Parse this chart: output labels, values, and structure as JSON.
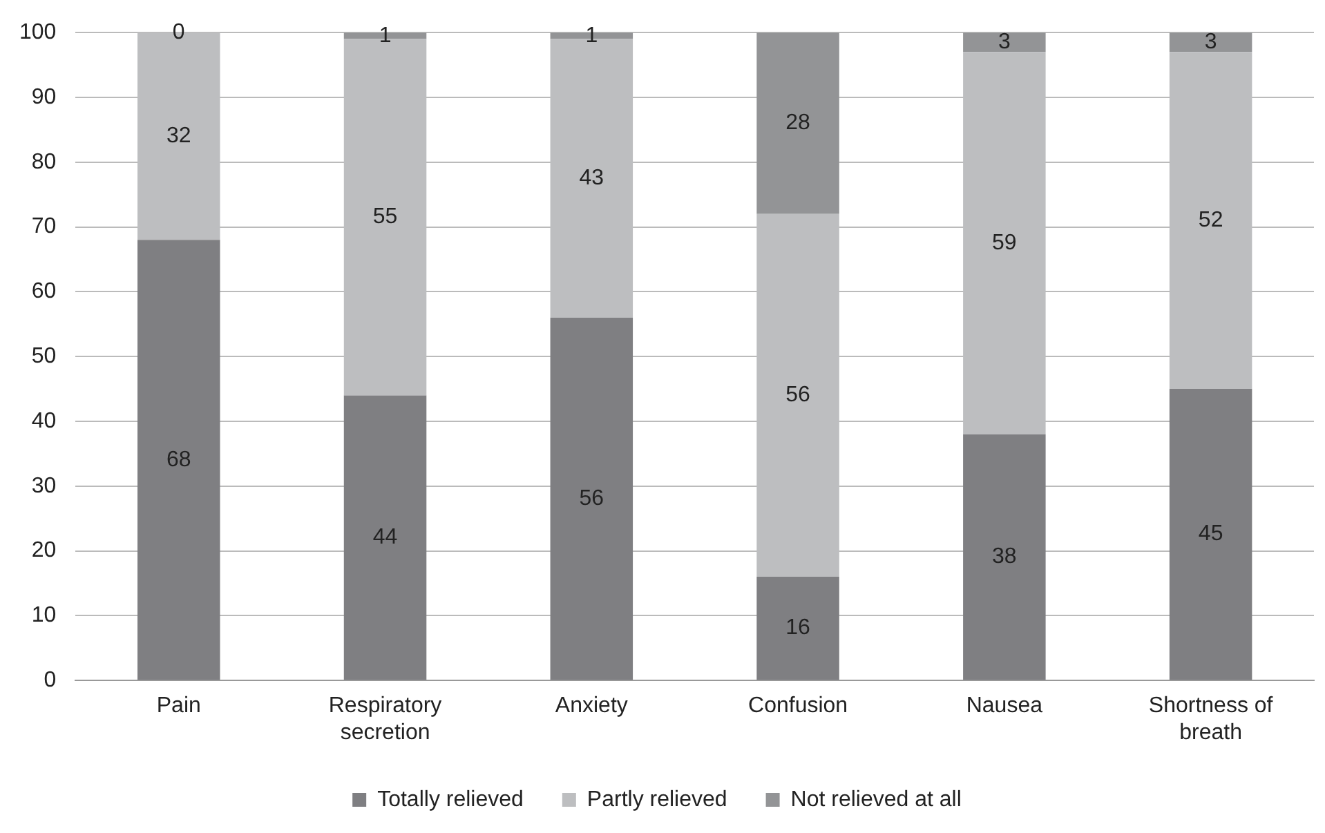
{
  "chart_data": {
    "type": "bar",
    "stacked": true,
    "categories": [
      "Pain",
      "Respiratory secretion",
      "Anxiety",
      "Confusion",
      "Nausea",
      "Shortness of breath"
    ],
    "series": [
      {
        "name": "Totally relieved",
        "color": "#7f7f82",
        "values": [
          68,
          44,
          56,
          16,
          38,
          45
        ]
      },
      {
        "name": "Partly relieved",
        "color": "#bdbec0",
        "values": [
          32,
          55,
          43,
          56,
          59,
          52
        ]
      },
      {
        "name": "Not relieved at all",
        "color": "#939496",
        "values": [
          0,
          1,
          1,
          28,
          3,
          3
        ]
      }
    ],
    "ylim": [
      0,
      100
    ],
    "yticks": [
      0,
      10,
      20,
      30,
      40,
      50,
      60,
      70,
      80,
      90,
      100
    ],
    "grid": "y",
    "legend": "bottom",
    "data_labels": true
  }
}
